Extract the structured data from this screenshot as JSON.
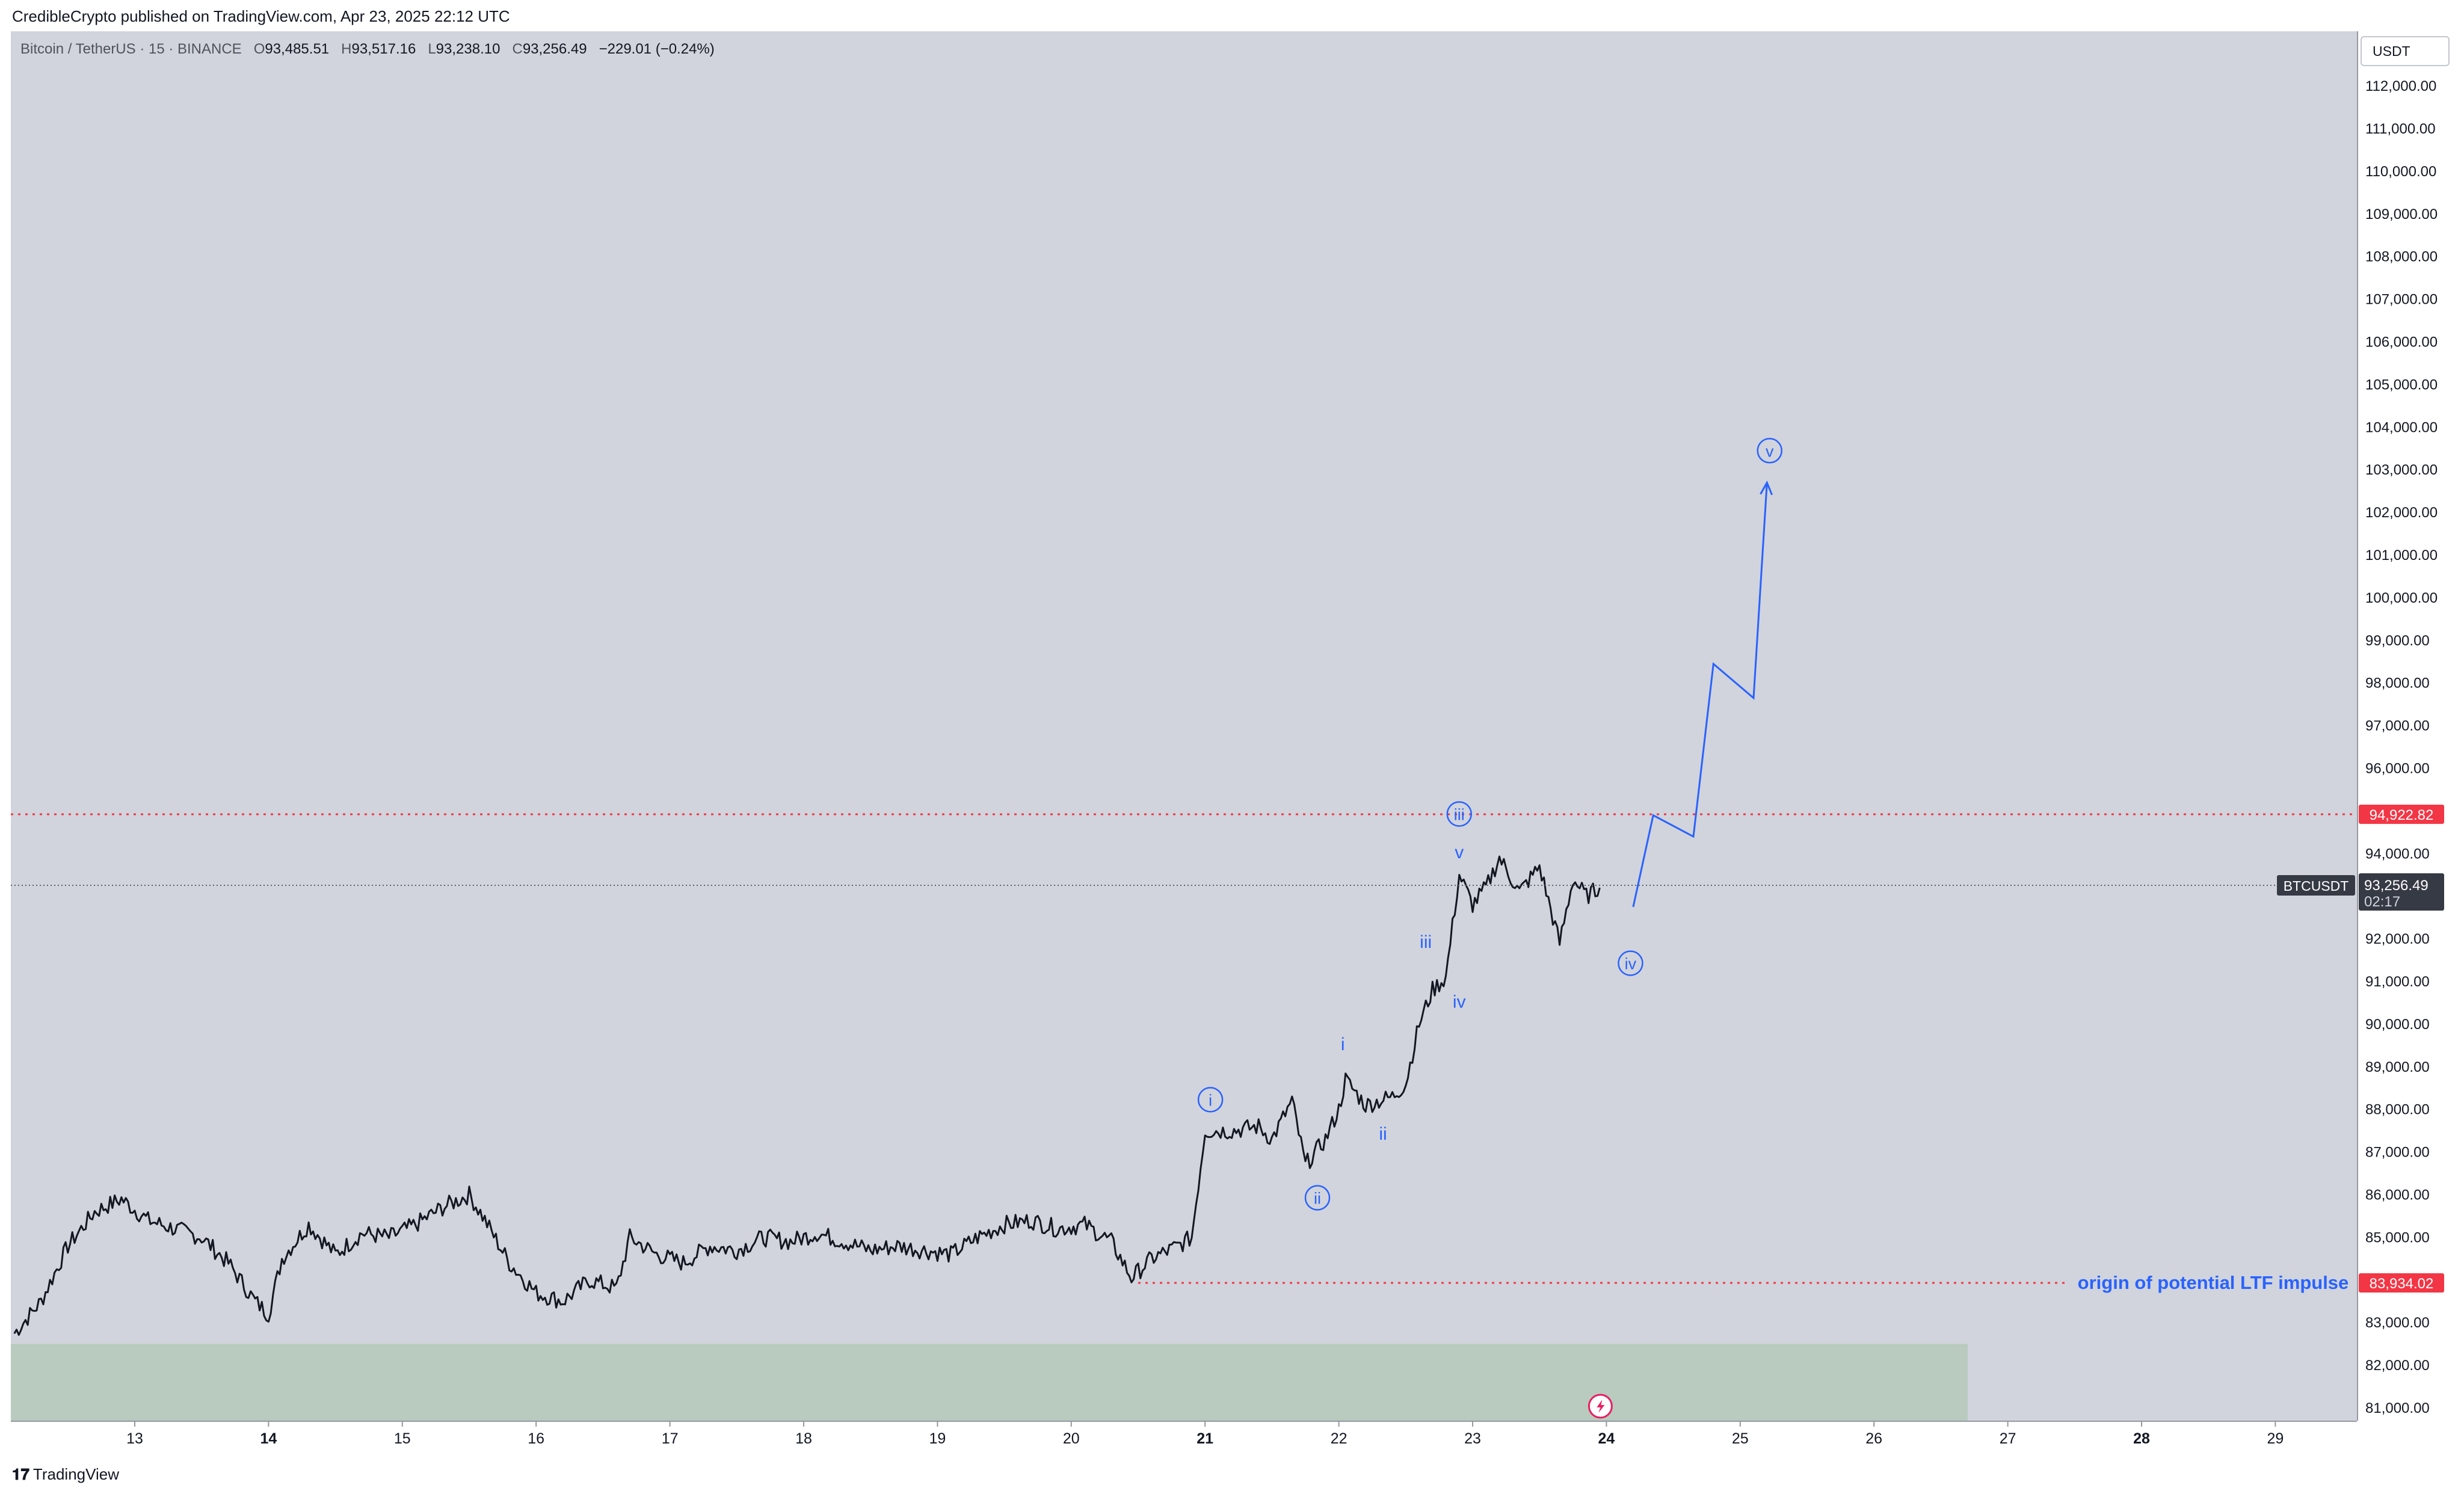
{
  "header": {
    "publisher_line": "CredibleCrypto published on TradingView.com, Apr 23, 2025 22:12 UTC"
  },
  "symbol": {
    "name": "Bitcoin / TetherUS · 15 · BINANCE",
    "open_label": "O",
    "open": "93,485.51",
    "high_label": "H",
    "high": "93,517.16",
    "low_label": "L",
    "low": "93,238.10",
    "close_label": "C",
    "close": "93,256.49",
    "change": "−229.01 (−0.24%)"
  },
  "scale": {
    "currency": "USDT"
  },
  "footer": {
    "brand": "TradingView"
  },
  "colors": {
    "background": "#d1d4dc",
    "candle": "#131722",
    "wave": "#2962ff",
    "level": "#f23645",
    "zone": "#b8cbbe"
  },
  "chart_data": {
    "type": "line",
    "xlabel": "",
    "ylabel": "",
    "ylim": [
      80500,
      112500
    ],
    "x_ticks": [
      {
        "day": 13,
        "label": "13",
        "bold": false
      },
      {
        "day": 14,
        "label": "14",
        "bold": true
      },
      {
        "day": 15,
        "label": "15",
        "bold": false
      },
      {
        "day": 16,
        "label": "16",
        "bold": false
      },
      {
        "day": 17,
        "label": "17",
        "bold": false
      },
      {
        "day": 18,
        "label": "18",
        "bold": false
      },
      {
        "day": 19,
        "label": "19",
        "bold": false
      },
      {
        "day": 20,
        "label": "20",
        "bold": false
      },
      {
        "day": 21,
        "label": "21",
        "bold": true
      },
      {
        "day": 22,
        "label": "22",
        "bold": false
      },
      {
        "day": 23,
        "label": "23",
        "bold": false
      },
      {
        "day": 24,
        "label": "24",
        "bold": true
      },
      {
        "day": 25,
        "label": "25",
        "bold": false
      },
      {
        "day": 26,
        "label": "26",
        "bold": false
      },
      {
        "day": 27,
        "label": "27",
        "bold": false
      },
      {
        "day": 28,
        "label": "28",
        "bold": true
      },
      {
        "day": 29,
        "label": "29",
        "bold": false
      }
    ],
    "y_ticks": [
      {
        "value": 81000,
        "label": "81,000.00"
      },
      {
        "value": 82000,
        "label": "82,000.00"
      },
      {
        "value": 83000,
        "label": "83,000.00"
      },
      {
        "value": 85000,
        "label": "85,000.00"
      },
      {
        "value": 86000,
        "label": "86,000.00"
      },
      {
        "value": 87000,
        "label": "87,000.00"
      },
      {
        "value": 88000,
        "label": "88,000.00"
      },
      {
        "value": 89000,
        "label": "89,000.00"
      },
      {
        "value": 90000,
        "label": "90,000.00"
      },
      {
        "value": 91000,
        "label": "91,000.00"
      },
      {
        "value": 92000,
        "label": "92,000.00"
      },
      {
        "value": 94000,
        "label": "94,000.00"
      },
      {
        "value": 96000,
        "label": "96,000.00"
      },
      {
        "value": 97000,
        "label": "97,000.00"
      },
      {
        "value": 98000,
        "label": "98,000.00"
      },
      {
        "value": 99000,
        "label": "99,000.00"
      },
      {
        "value": 100000,
        "label": "100,000.00"
      },
      {
        "value": 101000,
        "label": "101,000.00"
      },
      {
        "value": 102000,
        "label": "102,000.00"
      },
      {
        "value": 103000,
        "label": "103,000.00"
      },
      {
        "value": 104000,
        "label": "104,000.00"
      },
      {
        "value": 105000,
        "label": "105,000.00"
      },
      {
        "value": 106000,
        "label": "106,000.00"
      },
      {
        "value": 107000,
        "label": "107,000.00"
      },
      {
        "value": 108000,
        "label": "108,000.00"
      },
      {
        "value": 109000,
        "label": "109,000.00"
      },
      {
        "value": 110000,
        "label": "110,000.00"
      },
      {
        "value": 111000,
        "label": "111,000.00"
      },
      {
        "value": 112000,
        "label": "112,000.00"
      }
    ],
    "price_series": [
      [
        12.1,
        82750
      ],
      [
        12.3,
        83500
      ],
      [
        12.5,
        84800
      ],
      [
        12.7,
        85600
      ],
      [
        12.9,
        85900
      ],
      [
        13.1,
        85400
      ],
      [
        13.3,
        85200
      ],
      [
        13.5,
        85000
      ],
      [
        13.7,
        84400
      ],
      [
        13.9,
        83500
      ],
      [
        14.0,
        83200
      ],
      [
        14.1,
        84500
      ],
      [
        14.3,
        85300
      ],
      [
        14.5,
        84600
      ],
      [
        14.7,
        85100
      ],
      [
        14.9,
        85000
      ],
      [
        15.1,
        85300
      ],
      [
        15.3,
        85700
      ],
      [
        15.5,
        86000
      ],
      [
        15.6,
        85500
      ],
      [
        15.8,
        84400
      ],
      [
        16.0,
        83700
      ],
      [
        16.2,
        83500
      ],
      [
        16.4,
        84000
      ],
      [
        16.6,
        83800
      ],
      [
        16.7,
        85000
      ],
      [
        16.9,
        84600
      ],
      [
        17.1,
        84400
      ],
      [
        17.3,
        84800
      ],
      [
        17.5,
        84700
      ],
      [
        17.7,
        85000
      ],
      [
        17.9,
        84900
      ],
      [
        18.1,
        85100
      ],
      [
        18.3,
        84900
      ],
      [
        18.5,
        84700
      ],
      [
        18.7,
        84800
      ],
      [
        18.9,
        84700
      ],
      [
        19.1,
        84600
      ],
      [
        19.3,
        85000
      ],
      [
        19.5,
        85300
      ],
      [
        19.7,
        85400
      ],
      [
        19.9,
        85200
      ],
      [
        20.1,
        85300
      ],
      [
        20.3,
        84900
      ],
      [
        20.45,
        84050
      ],
      [
        20.6,
        84500
      ],
      [
        20.8,
        84800
      ],
      [
        20.9,
        85000
      ],
      [
        21.0,
        87500
      ],
      [
        21.2,
        87500
      ],
      [
        21.4,
        87600
      ],
      [
        21.5,
        87300
      ],
      [
        21.65,
        88200
      ],
      [
        21.75,
        86700
      ],
      [
        21.9,
        87300
      ],
      [
        22.0,
        88000
      ],
      [
        22.05,
        88700
      ],
      [
        22.2,
        88100
      ],
      [
        22.4,
        88300
      ],
      [
        22.5,
        88600
      ],
      [
        22.6,
        90000
      ],
      [
        22.7,
        90800
      ],
      [
        22.8,
        91100
      ],
      [
        22.85,
        92300
      ],
      [
        22.9,
        93500
      ],
      [
        23.0,
        92800
      ],
      [
        23.1,
        93200
      ],
      [
        23.2,
        93900
      ],
      [
        23.35,
        93100
      ],
      [
        23.5,
        93700
      ],
      [
        23.6,
        92500
      ],
      [
        23.65,
        91900
      ],
      [
        23.75,
        93400
      ],
      [
        23.85,
        93000
      ],
      [
        23.95,
        93200
      ]
    ],
    "projected_path": [
      [
        24.2,
        92750
      ],
      [
        24.35,
        94900
      ],
      [
        24.65,
        94400
      ],
      [
        24.8,
        98450
      ],
      [
        25.1,
        97650
      ],
      [
        25.2,
        102700
      ]
    ],
    "levels": [
      {
        "price": 94922.82,
        "label": "94,922.82",
        "x_start": 12.0
      },
      {
        "price": 83934.02,
        "label": "83,934.02",
        "x_start": 20.5,
        "x_end": 27.45,
        "annotation": "origin of potential LTF impulse"
      }
    ],
    "last_price": {
      "symbol": "BTCUSDT",
      "price": 93256.49,
      "label": "93,256.49",
      "countdown": "02:17"
    },
    "zone": {
      "x_start": 12.0,
      "x_end": 26.7,
      "y_low": 80300,
      "y_high": 82500
    },
    "wave_labels": [
      {
        "text": "i",
        "x": 21.04,
        "y": 88230,
        "circled": true
      },
      {
        "text": "ii",
        "x": 21.84,
        "y": 85930,
        "circled": true
      },
      {
        "text": "iii",
        "x": 22.9,
        "y": 94930,
        "circled": true
      },
      {
        "text": "iv",
        "x": 24.18,
        "y": 91430,
        "circled": true
      },
      {
        "text": "v",
        "x": 25.22,
        "y": 103450,
        "circled": true
      },
      {
        "text": "i",
        "x": 22.03,
        "y": 89530,
        "circled": false
      },
      {
        "text": "ii",
        "x": 22.33,
        "y": 87430,
        "circled": false
      },
      {
        "text": "iii",
        "x": 22.65,
        "y": 91930,
        "circled": false
      },
      {
        "text": "iv",
        "x": 22.9,
        "y": 90530,
        "circled": false
      },
      {
        "text": "v",
        "x": 22.9,
        "y": 94030,
        "circled": false
      }
    ],
    "event_marker_day": 24.0
  }
}
